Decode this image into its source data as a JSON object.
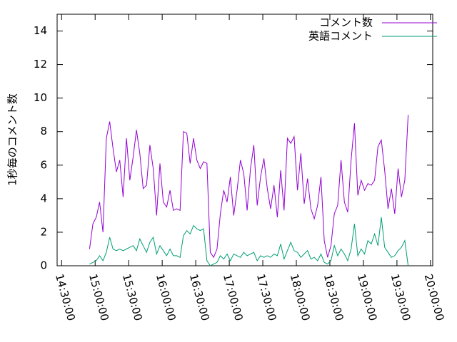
{
  "chart_data": {
    "type": "line",
    "y_label": "1秒毎のコメント数",
    "x": [
      "14:55:00",
      "14:58:00",
      "15:01:00",
      "15:04:00",
      "15:07:00",
      "15:10:00",
      "15:13:00",
      "15:16:00",
      "15:19:00",
      "15:22:00",
      "15:25:00",
      "15:28:00",
      "15:31:00",
      "15:34:00",
      "15:37:00",
      "15:40:00",
      "15:43:00",
      "15:46:00",
      "15:49:00",
      "15:52:00",
      "15:55:00",
      "15:58:00",
      "16:01:00",
      "16:04:00",
      "16:07:00",
      "16:10:00",
      "16:13:00",
      "16:16:00",
      "16:19:00",
      "16:22:00",
      "16:25:00",
      "16:28:00",
      "16:31:00",
      "16:34:00",
      "16:37:00",
      "16:40:00",
      "16:43:00",
      "16:46:00",
      "16:49:00",
      "16:52:00",
      "16:55:00",
      "16:58:00",
      "17:01:00",
      "17:04:00",
      "17:07:00",
      "17:10:00",
      "17:13:00",
      "17:16:00",
      "17:19:00",
      "17:22:00",
      "17:25:00",
      "17:28:00",
      "17:31:00",
      "17:34:00",
      "17:37:00",
      "17:40:00",
      "17:43:00",
      "17:46:00",
      "17:49:00",
      "17:52:00",
      "17:55:00",
      "17:58:00",
      "18:01:00",
      "18:04:00",
      "18:07:00",
      "18:10:00",
      "18:13:00",
      "18:16:00",
      "18:19:00",
      "18:22:00",
      "18:25:00",
      "18:28:00",
      "18:31:00",
      "18:34:00",
      "18:37:00",
      "18:40:00",
      "18:43:00",
      "18:46:00",
      "18:49:00",
      "18:52:00",
      "18:55:00",
      "18:58:00",
      "19:01:00",
      "19:04:00",
      "19:07:00",
      "19:10:00",
      "19:13:00",
      "19:16:00",
      "19:19:00",
      "19:22:00",
      "19:25:00",
      "19:28:00",
      "19:31:00",
      "19:34:00",
      "19:37:00",
      "19:40:00"
    ],
    "series": [
      {
        "name": "コメント数",
        "color": "#9400d3",
        "values": [
          1.0,
          2.5,
          2.9,
          3.8,
          2.0,
          7.6,
          8.6,
          7.0,
          5.6,
          6.3,
          4.1,
          7.6,
          5.1,
          6.5,
          8.1,
          6.7,
          4.6,
          4.8,
          7.2,
          5.8,
          3.0,
          6.1,
          3.8,
          3.5,
          4.5,
          3.3,
          3.4,
          3.3,
          8.0,
          7.9,
          6.1,
          7.6,
          6.3,
          5.8,
          6.2,
          6.1,
          0.8,
          0.5,
          1.0,
          3.1,
          4.5,
          3.8,
          5.3,
          3.0,
          4.5,
          6.3,
          5.5,
          3.3,
          5.8,
          7.2,
          3.6,
          5.3,
          6.4,
          4.6,
          3.4,
          4.8,
          2.9,
          5.7,
          3.3,
          7.6,
          7.3,
          7.7,
          4.5,
          6.7,
          3.7,
          5.2,
          3.4,
          2.8,
          3.6,
          5.3,
          1.5,
          0.5,
          1.2,
          3.1,
          3.6,
          6.3,
          3.8,
          3.2,
          6.3,
          8.5,
          4.2,
          5.1,
          4.5,
          4.9,
          4.8,
          5.1,
          7.1,
          7.5,
          5.7,
          3.4,
          4.6,
          3.1,
          5.8,
          4.1,
          5.1,
          9.0
        ]
      },
      {
        "name": "英語コメント",
        "color": "#009e73",
        "values": [
          0.1,
          0.2,
          0.3,
          0.6,
          0.3,
          0.8,
          1.7,
          1.0,
          0.9,
          1.0,
          0.9,
          1.0,
          1.1,
          1.2,
          0.9,
          1.6,
          1.2,
          0.8,
          1.4,
          1.7,
          0.7,
          1.2,
          0.9,
          0.6,
          1.0,
          0.6,
          0.6,
          0.5,
          1.8,
          2.1,
          1.9,
          2.4,
          2.2,
          2.1,
          2.2,
          0.3,
          0.0,
          0.1,
          0.2,
          0.6,
          0.4,
          0.7,
          0.3,
          0.7,
          0.6,
          0.5,
          0.8,
          0.6,
          0.7,
          0.8,
          0.3,
          0.6,
          0.5,
          0.6,
          0.5,
          0.7,
          0.6,
          1.3,
          0.4,
          0.9,
          1.4,
          0.9,
          0.8,
          0.5,
          0.7,
          0.9,
          0.4,
          0.5,
          0.3,
          0.7,
          0.2,
          0.1,
          0.3,
          1.2,
          0.6,
          1.0,
          0.7,
          0.3,
          1.0,
          2.5,
          0.6,
          1.0,
          0.7,
          1.5,
          1.3,
          1.9,
          1.2,
          2.9,
          1.1,
          0.8,
          0.5,
          0.6,
          0.9,
          1.1,
          1.5,
          0.0
        ]
      }
    ],
    "xlim": [
      "14:26:00",
      "20:02:00"
    ],
    "xticks": [
      "14:30:00",
      "15:00:00",
      "15:30:00",
      "16:00:00",
      "16:30:00",
      "17:00:00",
      "17:30:00",
      "18:00:00",
      "18:30:00",
      "19:00:00",
      "19:30:00",
      "20:00:00"
    ],
    "ylim": [
      0,
      15
    ],
    "yticks": [
      0,
      2,
      4,
      6,
      8,
      10,
      12,
      14
    ],
    "legend": "top-right"
  }
}
